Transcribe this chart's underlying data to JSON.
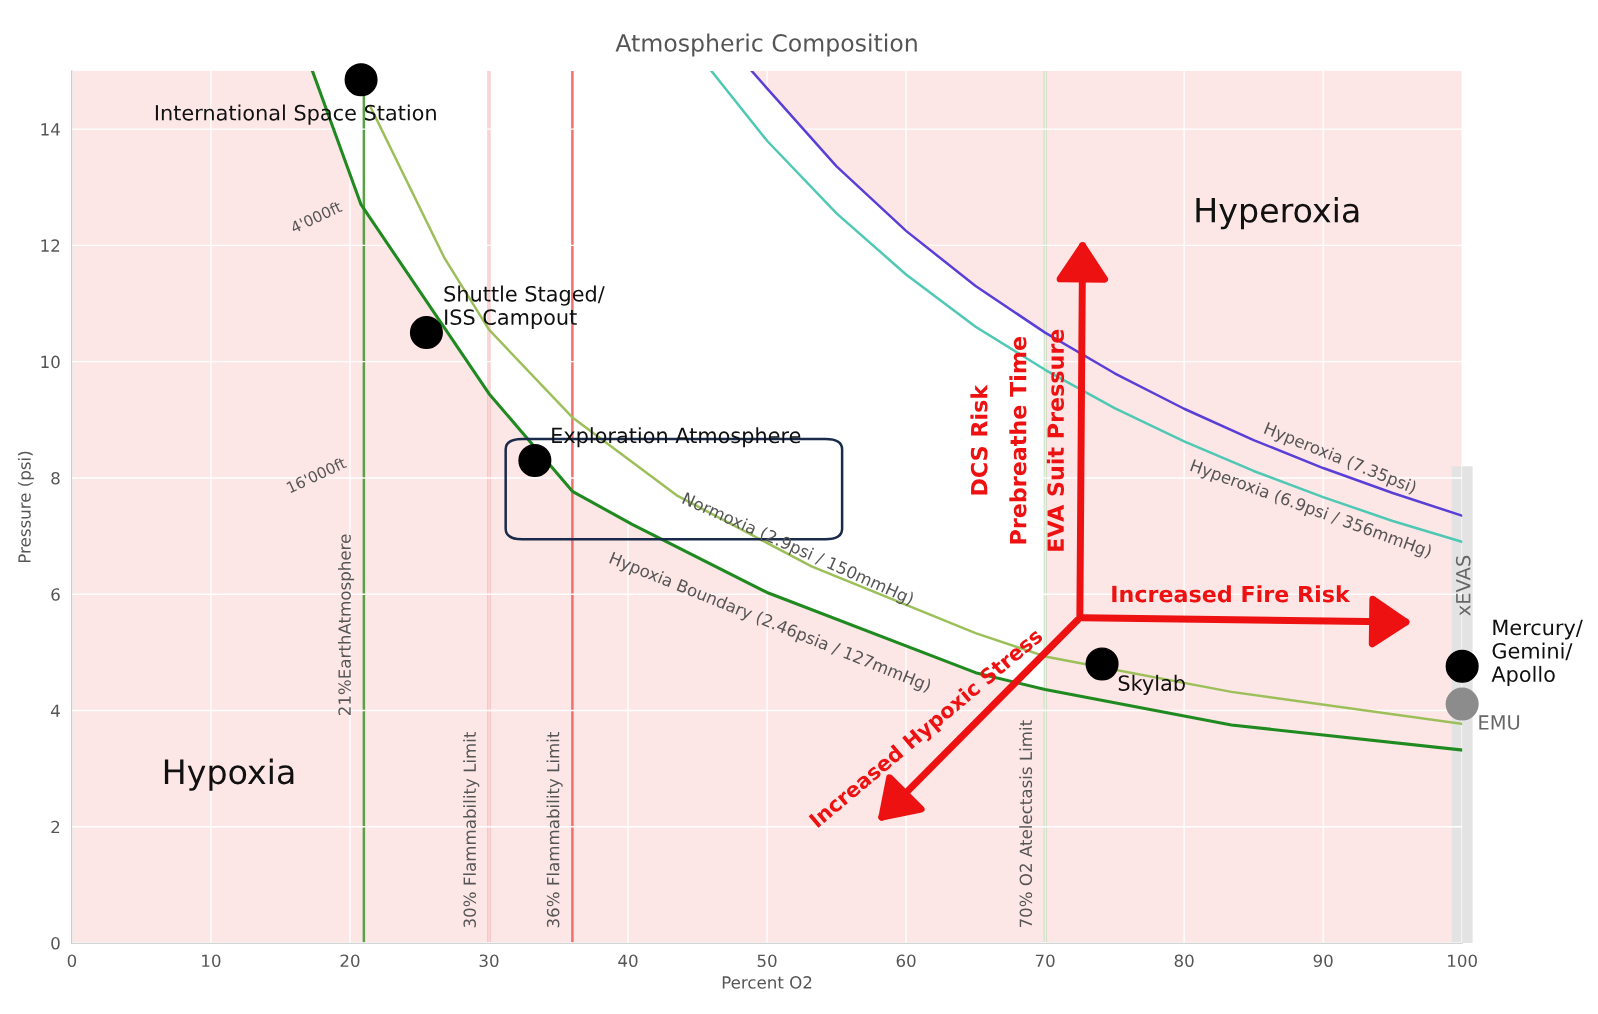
{
  "chart_data": {
    "type": "line",
    "title": "Atmospheric Composition",
    "xlabel": "Percent O2",
    "ylabel": "Pressure (psi)",
    "xlim": [
      0,
      100
    ],
    "ylim": [
      0,
      15
    ],
    "xticks": [
      0,
      10,
      20,
      30,
      40,
      50,
      60,
      70,
      80,
      90,
      100
    ],
    "yticks": [
      0,
      2,
      4,
      6,
      8,
      10,
      12,
      14
    ],
    "grid": true,
    "line_style": "solid",
    "series": [
      {
        "color": "#1f8a1f",
        "x": [
          17.3,
          20.8,
          30,
          36,
          40.3,
          50,
          65,
          70,
          83.4,
          100
        ],
        "values": [
          15,
          12.7,
          9.45,
          7.77,
          7.2,
          6.03,
          4.65,
          4.36,
          3.75,
          3.32
        ]
      },
      {
        "color": "#9cbf5a",
        "x": [
          21.5,
          26.8,
          30,
          36,
          43.5,
          53.2,
          65,
          70,
          83.4,
          100
        ],
        "values": [
          14.37,
          11.78,
          10.55,
          9.04,
          7.7,
          6.48,
          5.33,
          4.93,
          4.32,
          3.77
        ]
      },
      {
        "color": "#4fc8b4",
        "x": [
          46,
          50,
          55,
          60,
          65,
          70,
          75,
          80,
          85,
          90,
          95,
          100
        ],
        "values": [
          15,
          13.8,
          12.55,
          11.5,
          10.6,
          9.86,
          9.2,
          8.63,
          8.12,
          7.67,
          7.26,
          6.9
        ]
      },
      {
        "color": "#5a3fd6",
        "x": [
          48.9,
          50,
          55,
          60,
          65,
          70,
          75,
          80,
          85,
          90,
          95,
          100
        ],
        "values": [
          15,
          14.7,
          13.36,
          12.25,
          11.3,
          10.5,
          9.8,
          9.19,
          8.65,
          8.17,
          7.74,
          7.35
        ]
      },
      {
        "type": "bar",
        "color": "#e3e3e3",
        "x": [
          100
        ],
        "values": [
          8.2
        ]
      },
      {
        "type": "scatter",
        "marker": "circle",
        "color": "#000000",
        "x": [
          20.8,
          25.5,
          33.3,
          74.1,
          100
        ],
        "values": [
          14.85,
          10.5,
          8.3,
          4.8,
          4.76
        ]
      },
      {
        "type": "scatter",
        "marker": "circle",
        "color": "#8c8c8c",
        "x": [
          100
        ],
        "values": [
          4.11
        ]
      }
    ],
    "bands": [
      {
        "axis": "x",
        "from": 70,
        "to": 100,
        "color": "#fde6e6"
      }
    ],
    "ref_lines": [
      {
        "axis": "x",
        "value": 21,
        "label": "21%EarthAtmosphere",
        "color": "#5aa046"
      },
      {
        "axis": "x",
        "value": 30,
        "label": "30% Flammability Limit",
        "color": "#f07070"
      },
      {
        "axis": "x",
        "value": 36,
        "label": "36% Flammability Limit",
        "color": "#f07070"
      },
      {
        "axis": "x",
        "value": 70,
        "label": "70% O2 Atelectasis Limit",
        "color": "#8fc68f"
      }
    ],
    "annotations": [
      "International Space Station",
      "Shuttle Staged/\nISS Campout",
      "Exploration Atmosphere",
      "Skylab",
      "Mercury/\nGemini/\nApollo",
      "EMU",
      "Hypoxia",
      "Hyperoxia",
      "Normoxia (2.9psi / 150mmHg)",
      "Hypoxia Boundary (2.46psia / 127mmHg)",
      "Hyperoxia (7.35psi)",
      "Hyperoxia (6.9psi / 356mmHg)",
      "4'000ft",
      "16'000ft",
      "DCS Risk",
      "Prebreathe Time",
      "EVA Suit Pressure",
      "Increased Fire Risk",
      "Increased Hypoxic Stress",
      "xEVAS"
    ]
  }
}
